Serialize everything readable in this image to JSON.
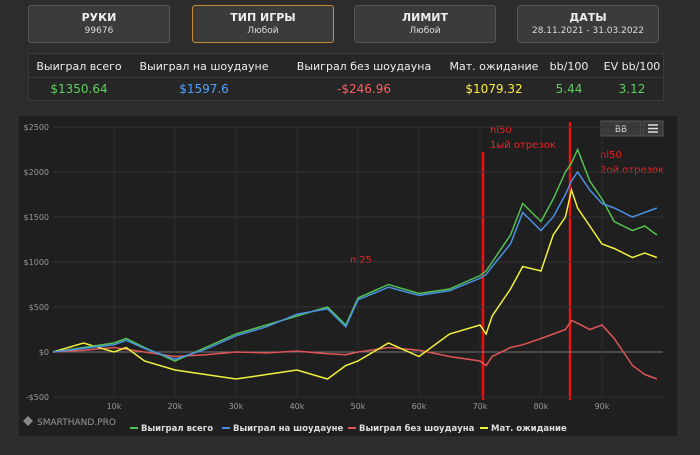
{
  "buttons": [
    {
      "title": "РУКИ",
      "value": "99676"
    },
    {
      "title": "ТИП ИГРЫ",
      "value": "Любой"
    },
    {
      "title": "ЛИМИТ",
      "value": "Любой"
    },
    {
      "title": "ДАТЫ",
      "value": "28.11.2021 - 31.03.2022"
    }
  ],
  "stats": {
    "headers": [
      "Выиграл всего",
      "Выиграл на шоудауне",
      "Выиграл без шоудауна",
      "Мат. ожидание",
      "bb/100",
      "EV bb/100"
    ],
    "values": [
      "$1350.64",
      "$1597.6",
      "-$246.96",
      "$1079.32",
      "5.44",
      "3.12"
    ]
  },
  "chart_data": {
    "type": "line",
    "xlim": [
      0,
      100000
    ],
    "ylim": [
      -500,
      2500
    ],
    "xticks": [
      {
        "value": 10000,
        "label": "10k"
      },
      {
        "value": 20000,
        "label": "20k"
      },
      {
        "value": 30000,
        "label": "30k"
      },
      {
        "value": 40000,
        "label": "40k"
      },
      {
        "value": 50000,
        "label": "50k"
      },
      {
        "value": 60000,
        "label": "60k"
      },
      {
        "value": 70000,
        "label": "70k"
      },
      {
        "value": 80000,
        "label": "80k"
      },
      {
        "value": 90000,
        "label": "90k"
      }
    ],
    "yticks": [
      {
        "value": -500,
        "label": "-$500"
      },
      {
        "value": 0,
        "label": "$0"
      },
      {
        "value": 500,
        "label": "$500"
      },
      {
        "value": 1000,
        "label": "$1000"
      },
      {
        "value": 1500,
        "label": "$1500"
      },
      {
        "value": 2000,
        "label": "$2000"
      },
      {
        "value": 2500,
        "label": "$2500"
      }
    ],
    "x": [
      0,
      5000,
      10000,
      12000,
      15000,
      20000,
      25000,
      30000,
      35000,
      40000,
      45000,
      48000,
      50000,
      55000,
      60000,
      65000,
      70000,
      71000,
      72000,
      75000,
      77000,
      80000,
      82000,
      84000,
      85000,
      86000,
      88000,
      90000,
      92000,
      95000,
      97000,
      99000
    ],
    "series": [
      {
        "name": "Выиграл всего",
        "color": "#52c152",
        "values": [
          0,
          50,
          100,
          150,
          50,
          -100,
          50,
          200,
          300,
          400,
          500,
          300,
          600,
          750,
          650,
          700,
          850,
          900,
          1000,
          1300,
          1650,
          1450,
          1700,
          2000,
          2100,
          2250,
          1900,
          1700,
          1450,
          1350,
          1400,
          1300
        ]
      },
      {
        "name": "Выиграл на шоудауне",
        "color": "#4a90e2",
        "values": [
          0,
          40,
          80,
          130,
          40,
          -80,
          30,
          180,
          280,
          420,
          480,
          280,
          580,
          720,
          630,
          680,
          820,
          860,
          950,
          1200,
          1550,
          1350,
          1500,
          1750,
          1900,
          2000,
          1800,
          1650,
          1600,
          1500,
          1550,
          1600
        ]
      },
      {
        "name": "Выиграл без шоудауна",
        "color": "#e05555",
        "values": [
          0,
          20,
          50,
          30,
          0,
          -50,
          -30,
          0,
          -10,
          10,
          -20,
          -30,
          0,
          50,
          20,
          -50,
          -100,
          -150,
          -50,
          50,
          80,
          150,
          200,
          250,
          350,
          320,
          250,
          300,
          150,
          -150,
          -250,
          -300
        ]
      },
      {
        "name": "Мат. ожидание",
        "color": "#f2f03c",
        "values": [
          0,
          100,
          0,
          50,
          -100,
          -200,
          -250,
          -300,
          -250,
          -200,
          -300,
          -150,
          -100,
          100,
          -50,
          200,
          300,
          200,
          400,
          700,
          950,
          900,
          1300,
          1500,
          1800,
          1600,
          1400,
          1200,
          1150,
          1050,
          1100,
          1050
        ]
      }
    ],
    "annotations": [
      "nl25",
      "nl50",
      "1ый отрезок",
      "nl50",
      "2ой отрезок"
    ],
    "button": "BB",
    "logo": "SMARTHAND.PRO",
    "grid": true
  }
}
